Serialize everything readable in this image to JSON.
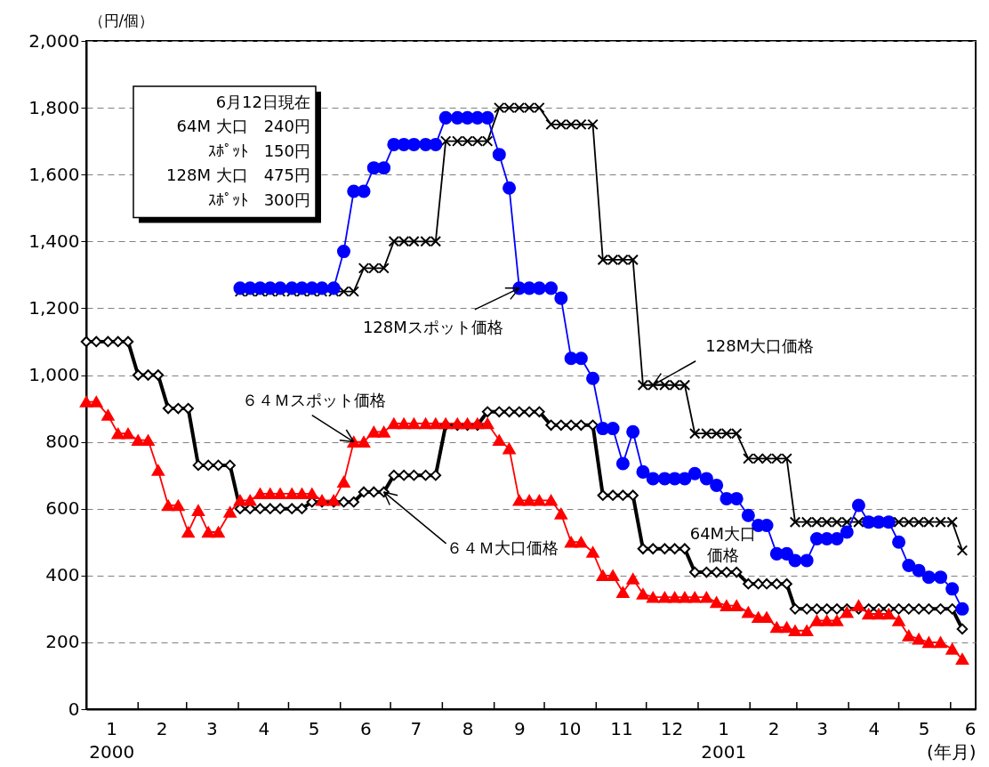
{
  "chart_data": {
    "type": "line",
    "ylabel": "（円/個）",
    "x": [
      "2000-01-01",
      "2000-01-07",
      "2000-01-14",
      "2000-01-20",
      "2000-01-26",
      "2000-02-01",
      "2000-02-07",
      "2000-02-13",
      "2000-02-19",
      "2000-02-25",
      "2000-03-02",
      "2000-03-08",
      "2000-03-14",
      "2000-03-20",
      "2000-03-27",
      "2000-04-02",
      "2000-04-08",
      "2000-04-14",
      "2000-04-20",
      "2000-04-26",
      "2000-05-03",
      "2000-05-09",
      "2000-05-15",
      "2000-05-21",
      "2000-05-28",
      "2000-06-03",
      "2000-06-09",
      "2000-06-15",
      "2000-06-21",
      "2000-06-27",
      "2000-07-03",
      "2000-07-09",
      "2000-07-15",
      "2000-07-22",
      "2000-07-28",
      "2000-08-03",
      "2000-08-10",
      "2000-08-16",
      "2000-08-22",
      "2000-08-28",
      "2000-09-04",
      "2000-09-10",
      "2000-09-16",
      "2000-09-22",
      "2000-09-28",
      "2000-10-05",
      "2000-10-11",
      "2000-10-17",
      "2000-10-23",
      "2000-10-30",
      "2000-11-05",
      "2000-11-11",
      "2000-11-17",
      "2000-11-23",
      "2000-11-29",
      "2000-12-05",
      "2000-12-12",
      "2000-12-18",
      "2000-12-24",
      "2000-12-30",
      "2001-01-06",
      "2001-01-12",
      "2001-01-18",
      "2001-01-24",
      "2001-01-31",
      "2001-02-06",
      "2001-02-11",
      "2001-02-17",
      "2001-02-23",
      "2001-02-28",
      "2001-03-07",
      "2001-03-13",
      "2001-03-19",
      "2001-03-25",
      "2001-03-31",
      "2001-04-07",
      "2001-04-13",
      "2001-04-19",
      "2001-04-25",
      "2001-05-01",
      "2001-05-07",
      "2001-05-13",
      "2001-05-19",
      "2001-05-26",
      "2001-06-02",
      "2001-06-08"
    ],
    "series": [
      {
        "color": "#000000",
        "marker": "diamond",
        "line_style": "solid",
        "values": [
          1100,
          1100,
          1100,
          1100,
          1100,
          1000,
          1000,
          1000,
          900,
          900,
          900,
          730,
          730,
          730,
          730,
          600,
          600,
          600,
          600,
          600,
          600,
          600,
          620,
          620,
          620,
          620,
          620,
          650,
          650,
          650,
          700,
          700,
          700,
          700,
          700,
          850,
          850,
          850,
          850,
          890,
          890,
          890,
          890,
          890,
          890,
          850,
          850,
          850,
          850,
          850,
          640,
          640,
          640,
          640,
          480,
          480,
          480,
          480,
          480,
          410,
          410,
          410,
          410,
          410,
          375,
          375,
          375,
          375,
          375,
          300,
          300,
          300,
          300,
          300,
          300,
          300,
          300,
          300,
          300,
          300,
          300,
          300,
          300,
          300,
          300,
          240
        ]
      },
      {
        "color": "#000000",
        "marker": "cross",
        "line_style": "solid",
        "values": [
          null,
          null,
          null,
          null,
          null,
          null,
          null,
          null,
          null,
          null,
          null,
          null,
          null,
          null,
          null,
          1250,
          1250,
          1250,
          1250,
          1250,
          1250,
          1250,
          1250,
          1250,
          1250,
          1250,
          1250,
          1320,
          1320,
          1320,
          1400,
          1400,
          1400,
          1400,
          1400,
          1700,
          1700,
          1700,
          1700,
          1700,
          1800,
          1800,
          1800,
          1800,
          1800,
          1750,
          1750,
          1750,
          1750,
          1750,
          1345,
          1345,
          1345,
          1345,
          970,
          970,
          970,
          970,
          970,
          825,
          825,
          825,
          825,
          825,
          750,
          750,
          750,
          750,
          750,
          560,
          560,
          560,
          560,
          560,
          560,
          560,
          560,
          560,
          560,
          560,
          560,
          560,
          560,
          560,
          560,
          475
        ]
      },
      {
        "color": "#ff0000",
        "marker": "triangle",
        "line_style": "solid",
        "values": [
          920,
          920,
          880,
          825,
          825,
          805,
          805,
          715,
          610,
          610,
          530,
          595,
          530,
          530,
          590,
          625,
          625,
          645,
          645,
          645,
          645,
          645,
          645,
          625,
          625,
          680,
          800,
          800,
          830,
          830,
          855,
          855,
          855,
          855,
          855,
          855,
          855,
          855,
          855,
          855,
          805,
          780,
          625,
          625,
          625,
          625,
          585,
          500,
          500,
          470,
          400,
          400,
          350,
          390,
          345,
          335,
          335,
          335,
          335,
          335,
          335,
          320,
          310,
          310,
          290,
          275,
          275,
          245,
          245,
          235,
          235,
          265,
          265,
          265,
          290,
          310,
          285,
          285,
          285,
          265,
          220,
          210,
          200,
          200,
          180,
          150
        ]
      },
      {
        "color": "#0000ff",
        "marker": "circle",
        "line_style": "solid",
        "values": [
          null,
          null,
          null,
          null,
          null,
          null,
          null,
          null,
          null,
          null,
          null,
          null,
          null,
          null,
          null,
          1260,
          1260,
          1260,
          1260,
          1260,
          1260,
          1260,
          1260,
          1260,
          1260,
          1370,
          1550,
          1550,
          1620,
          1620,
          1690,
          1690,
          1690,
          1690,
          1690,
          1770,
          1770,
          1770,
          1770,
          1770,
          1660,
          1560,
          1260,
          1260,
          1260,
          1260,
          1230,
          1050,
          1050,
          990,
          840,
          840,
          735,
          830,
          710,
          690,
          690,
          690,
          690,
          705,
          690,
          670,
          630,
          630,
          580,
          550,
          550,
          465,
          465,
          445,
          445,
          510,
          510,
          510,
          530,
          610,
          560,
          560,
          560,
          500,
          430,
          415,
          395,
          395,
          360,
          300
        ]
      }
    ],
    "xlim": [
      "2000-01-01",
      "2001-06-16"
    ],
    "xticks": [
      {
        "value": "2000-01-16",
        "label": "1\n2000"
      },
      {
        "value": "2000-02-01",
        "label": null
      },
      {
        "value": "2000-02-15",
        "label": "2"
      },
      {
        "value": "2000-03-01",
        "label": null
      },
      {
        "value": "2000-03-16",
        "label": "3"
      },
      {
        "value": "2000-04-01",
        "label": null
      },
      {
        "value": "2000-04-16",
        "label": "4"
      },
      {
        "value": "2000-05-01",
        "label": null
      },
      {
        "value": "2000-05-16",
        "label": "5"
      },
      {
        "value": "2000-06-01",
        "label": null
      },
      {
        "value": "2000-06-16",
        "label": "6"
      },
      {
        "value": "2000-07-01",
        "label": null
      },
      {
        "value": "2000-07-16",
        "label": "7"
      },
      {
        "value": "2000-08-01",
        "label": null
      },
      {
        "value": "2000-08-16",
        "label": "8"
      },
      {
        "value": "2000-09-01",
        "label": null
      },
      {
        "value": "2000-09-16",
        "label": "9"
      },
      {
        "value": "2000-10-01",
        "label": null
      },
      {
        "value": "2000-10-16",
        "label": "10"
      },
      {
        "value": "2000-11-01",
        "label": null
      },
      {
        "value": "2000-11-16",
        "label": "11"
      },
      {
        "value": "2000-12-01",
        "label": null
      },
      {
        "value": "2000-12-16",
        "label": "12"
      },
      {
        "value": "2001-01-01",
        "label": null
      },
      {
        "value": "2001-01-16",
        "label": "1\n2001"
      },
      {
        "value": "2001-02-01",
        "label": null
      },
      {
        "value": "2001-02-15",
        "label": "2"
      },
      {
        "value": "2001-03-01",
        "label": null
      },
      {
        "value": "2001-03-16",
        "label": "3"
      },
      {
        "value": "2001-04-01",
        "label": null
      },
      {
        "value": "2001-04-16",
        "label": "4"
      },
      {
        "value": "2001-05-01",
        "label": null
      },
      {
        "value": "2001-05-16",
        "label": "5"
      },
      {
        "value": "2001-06-01",
        "label": null
      },
      {
        "value": "2001-06-16",
        "label": "6\n(年月)"
      }
    ],
    "ylim": [
      0,
      2000
    ],
    "yticks": [
      {
        "value": 0,
        "label": "0"
      },
      {
        "value": 200,
        "label": "200"
      },
      {
        "value": 400,
        "label": "400"
      },
      {
        "value": 600,
        "label": "600"
      },
      {
        "value": 800,
        "label": "800"
      },
      {
        "value": 1000,
        "label": "1,000"
      },
      {
        "value": 1200,
        "label": "1,200"
      },
      {
        "value": 1400,
        "label": "1,400"
      },
      {
        "value": 1600,
        "label": "1,600"
      },
      {
        "value": 1800,
        "label": "1,800"
      },
      {
        "value": 2000,
        "label": "2,000"
      }
    ],
    "grid": "y",
    "annotations": [
      "6月12日現在",
      "64M 大口　240円",
      "ｽﾎﾟｯﾄ　150円",
      "128M 大口　475円",
      "ｽﾎﾟｯﾄ　300円",
      {
        "text": "128Mスポット価格",
        "x": "2000-09-16",
        "y": 1260
      },
      {
        "text": "128M大口価格",
        "x": "2000-12-05",
        "y": 970
      },
      {
        "text": "６４Ｍスポット価格",
        "x": "2000-06-09",
        "y": 800
      },
      {
        "text": "６４Ｍ大口価格",
        "x": "2000-06-27",
        "y": 650
      },
      {
        "text": "64M大口価格",
        "x": "2001-01-18",
        "y": 410
      }
    ]
  }
}
